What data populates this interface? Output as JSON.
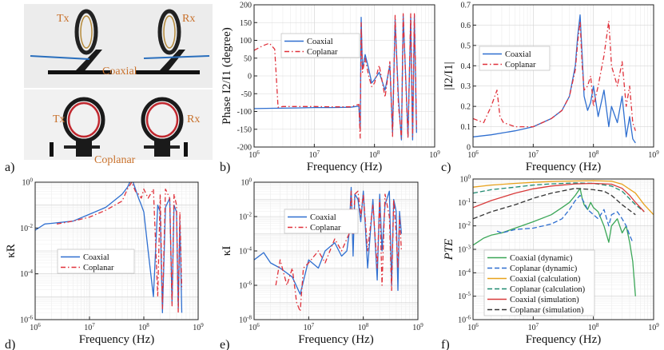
{
  "photo": {
    "panel_label": "a)",
    "labels": {
      "tx_top": "Tx",
      "rx_top": "Rx",
      "coaxial": "Coaxial",
      "tx_bottom": "Tx",
      "rx_bottom": "Rx",
      "coplanar": "Coplanar"
    }
  },
  "colors": {
    "coaxial": "#2f6fd0",
    "coplanar": "#e0303a",
    "green": "#3aa657",
    "orange": "#e8a21d",
    "teal": "#1f8a70",
    "red": "#d83a3a",
    "dark": "#333333"
  },
  "chart_data": [
    {
      "id": "b",
      "panel_label": "b)",
      "type": "line",
      "xlabel": "Frequency (Hz)",
      "ylabel": "Phase I2/I1 (degree)",
      "xscale": "log",
      "xlim": [
        1000000,
        1000000000
      ],
      "ylim": [
        -200,
        200
      ],
      "yticks": [
        "-200",
        "-150",
        "-100",
        "-50",
        "0",
        "50",
        "100",
        "150",
        "200"
      ],
      "legend": "top-left",
      "series": [
        {
          "name": "Coaxial",
          "color": "#2f6fd0",
          "dash": "",
          "x": [
            1000000.0,
            2000000.0,
            5000000.0,
            10000000.0,
            20000000.0,
            40000000.0,
            55000000.0,
            58000000.0,
            60000000.0,
            63000000.0,
            70000000.0,
            80000000.0,
            90000000.0,
            100000000.0,
            120000000.0,
            150000000.0,
            180000000.0,
            200000000.0,
            220000000.0,
            250000000.0,
            280000000.0,
            300000000.0,
            330000000.0,
            360000000.0,
            400000000.0,
            430000000.0,
            460000000.0,
            500000000.0
          ],
          "y": [
            -92,
            -91,
            -90,
            -89,
            -89,
            -88,
            -85,
            -150,
            165,
            20,
            60,
            20,
            -20,
            -10,
            10,
            -40,
            30,
            -160,
            160,
            -60,
            -180,
            170,
            0,
            -170,
            165,
            -180,
            170,
            -160
          ]
        },
        {
          "name": "Coplanar",
          "color": "#e0303a",
          "dash": "6,3,1.5,3",
          "x": [
            1000000.0,
            1400000.0,
            1800000.0,
            2200000.0,
            2500000.0,
            3000000.0,
            5000000.0,
            10000000.0,
            20000000.0,
            40000000.0,
            55000000.0,
            58000000.0,
            60000000.0,
            63000000.0,
            70000000.0,
            80000000.0,
            90000000.0,
            100000000.0,
            120000000.0,
            150000000.0,
            180000000.0,
            200000000.0,
            220000000.0,
            250000000.0,
            280000000.0,
            300000000.0,
            330000000.0,
            360000000.0,
            400000000.0,
            430000000.0,
            460000000.0,
            500000000.0
          ],
          "y": [
            72,
            85,
            92,
            75,
            -88,
            -86,
            -86,
            -86,
            -87,
            -87,
            -80,
            -175,
            150,
            10,
            50,
            0,
            -30,
            -20,
            30,
            -60,
            40,
            -170,
            170,
            -80,
            -175,
            175,
            -10,
            -175,
            175,
            -170,
            175,
            -150
          ]
        }
      ]
    },
    {
      "id": "c",
      "panel_label": "c)",
      "type": "line",
      "xlabel": "Frequency (Hz)",
      "ylabel": "|I2/I1|",
      "xscale": "log",
      "xlim": [
        1000000,
        1000000000
      ],
      "ylim": [
        0,
        0.7
      ],
      "yticks": [
        "0",
        "0.1",
        "0.2",
        "0.3",
        "0.4",
        "0.5",
        "0.6",
        "0.7"
      ],
      "legend": "top-left",
      "series": [
        {
          "name": "Coaxial",
          "color": "#2f6fd0",
          "dash": "",
          "x": [
            1000000.0,
            2000000.0,
            5000000.0,
            10000000.0,
            20000000.0,
            30000000.0,
            40000000.0,
            50000000.0,
            55000000.0,
            60000000.0,
            65000000.0,
            70000000.0,
            80000000.0,
            90000000.0,
            100000000.0,
            120000000.0,
            150000000.0,
            180000000.0,
            200000000.0,
            250000000.0,
            300000000.0,
            350000000.0,
            400000000.0,
            450000000.0,
            500000000.0
          ],
          "y": [
            0.05,
            0.06,
            0.08,
            0.1,
            0.14,
            0.18,
            0.25,
            0.4,
            0.55,
            0.65,
            0.45,
            0.25,
            0.18,
            0.22,
            0.3,
            0.15,
            0.28,
            0.1,
            0.2,
            0.12,
            0.25,
            0.05,
            0.15,
            0.04,
            0.02
          ]
        },
        {
          "name": "Coplanar",
          "color": "#e0303a",
          "dash": "6,3,1.5,3",
          "x": [
            1000000.0,
            1500000.0,
            2000000.0,
            2500000.0,
            2800000.0,
            3200000.0,
            5000000.0,
            10000000.0,
            20000000.0,
            30000000.0,
            40000000.0,
            50000000.0,
            55000000.0,
            60000000.0,
            65000000.0,
            70000000.0,
            80000000.0,
            90000000.0,
            100000000.0,
            120000000.0,
            150000000.0,
            180000000.0,
            200000000.0,
            250000000.0,
            300000000.0,
            350000000.0,
            400000000.0,
            450000000.0,
            500000000.0
          ],
          "y": [
            0.14,
            0.12,
            0.2,
            0.28,
            0.15,
            0.12,
            0.1,
            0.1,
            0.14,
            0.18,
            0.25,
            0.38,
            0.52,
            0.62,
            0.4,
            0.28,
            0.3,
            0.35,
            0.2,
            0.3,
            0.45,
            0.62,
            0.4,
            0.3,
            0.42,
            0.2,
            0.3,
            0.12,
            0.08
          ]
        }
      ]
    },
    {
      "id": "d",
      "panel_label": "d)",
      "type": "line",
      "xlabel": "Frequency (Hz)",
      "ylabel": "κR",
      "xscale": "log",
      "xlim": [
        1000000,
        1000000000
      ],
      "yscale": "log",
      "ylim": [
        1e-06,
        1
      ],
      "yticks": [
        "10-6",
        "10-4",
        "10-2",
        "100"
      ],
      "legend": "bottom-left",
      "series": [
        {
          "name": "Coaxial",
          "color": "#2f6fd0",
          "dash": "",
          "x": [
            1000000.0,
            1500000.0,
            2000000.0,
            5000000.0,
            10000000.0,
            20000000.0,
            40000000.0,
            50000000.0,
            60000000.0,
            70000000.0,
            80000000.0,
            90000000.0,
            100000000.0,
            120000000.0,
            150000000.0,
            180000000.0,
            200000000.0,
            220000000.0,
            250000000.0,
            300000000.0,
            330000000.0,
            360000000.0,
            400000000.0,
            430000000.0,
            460000000.0,
            500000000.0
          ],
          "y": [
            0.008,
            0.015,
            0.016,
            0.02,
            0.04,
            0.08,
            0.3,
            0.6,
            1.5,
            0.5,
            0.2,
            0.1,
            0.05,
            0.001,
            1e-05,
            0.1,
            0.05,
            2e-06,
            0.08,
            0.2,
            5e-06,
            0.1,
            0.05,
            3e-06,
            0.02,
            2e-06
          ]
        },
        {
          "name": "Coplanar",
          "color": "#e0303a",
          "dash": "6,3,1.5,3",
          "x": [
            2500000.0,
            5000000.0,
            10000000.0,
            20000000.0,
            40000000.0,
            50000000.0,
            60000000.0,
            70000000.0,
            80000000.0,
            90000000.0,
            100000000.0,
            120000000.0,
            150000000.0,
            180000000.0,
            200000000.0,
            220000000.0,
            250000000.0,
            300000000.0,
            330000000.0,
            360000000.0,
            400000000.0,
            430000000.0,
            460000000.0,
            500000000.0
          ],
          "y": [
            0.015,
            0.02,
            0.03,
            0.06,
            0.15,
            0.5,
            1.0,
            0.4,
            0.3,
            0.2,
            0.5,
            0.2,
            0.5,
            1e-05,
            0.3,
            3e-06,
            0.5,
            0.2,
            4e-06,
            0.3,
            0.1,
            2e-06,
            0.05,
            2e-05
          ]
        }
      ]
    },
    {
      "id": "e",
      "panel_label": "e)",
      "type": "line",
      "xlabel": "Frequency (Hz)",
      "ylabel": "κI",
      "xscale": "log",
      "xlim": [
        1000000,
        1000000000
      ],
      "yscale": "log",
      "ylim": [
        1e-08,
        1
      ],
      "yticks": [
        "10-8",
        "10-6",
        "10-4",
        "10-2",
        "100"
      ],
      "legend": "top-center",
      "series": [
        {
          "name": "Coaxial",
          "color": "#2f6fd0",
          "dash": "",
          "x": [
            1000000.0,
            1500000.0,
            2000000.0,
            3000000.0,
            5000000.0,
            7000000.0,
            10000000.0,
            15000000.0,
            20000000.0,
            30000000.0,
            40000000.0,
            50000000.0,
            55000000.0,
            60000000.0,
            65000000.0,
            70000000.0,
            80000000.0,
            90000000.0,
            100000000.0,
            120000000.0,
            150000000.0,
            180000000.0,
            200000000.0,
            220000000.0,
            250000000.0,
            300000000.0,
            330000000.0,
            360000000.0,
            400000000.0,
            430000000.0,
            460000000.0,
            500000000.0
          ],
          "y": [
            3e-05,
            8e-05,
            2e-05,
            1e-05,
            3e-06,
            3e-07,
            3e-05,
            1e-05,
            0.0001,
            0.0003,
            5e-05,
            0.0001,
            0.001,
            0.5,
            5e-05,
            0.2,
            0.1,
            0.005,
            0.3,
            1e-05,
            0.1,
            2e-06,
            0.2,
            0.0001,
            0.05,
            0.3,
            1e-06,
            0.1,
            0.02,
            5e-07,
            0.02,
            0.001
          ]
        },
        {
          "name": "Coplanar",
          "color": "#e0303a",
          "dash": "6,3,1.5,3",
          "x": [
            2500000.0,
            3000000.0,
            4000000.0,
            5000000.0,
            6000000.0,
            7000000.0,
            8000000.0,
            10000000.0,
            15000000.0,
            20000000.0,
            30000000.0,
            40000000.0,
            50000000.0,
            55000000.0,
            60000000.0,
            65000000.0,
            70000000.0,
            80000000.0,
            90000000.0,
            100000000.0,
            120000000.0,
            150000000.0,
            180000000.0,
            200000000.0,
            220000000.0,
            250000000.0,
            300000000.0,
            330000000.0,
            360000000.0,
            400000000.0,
            430000000.0,
            460000000.0,
            500000000.0
          ],
          "y": [
            1e-06,
            3e-05,
            1e-06,
            1e-05,
            1e-07,
            3e-08,
            1e-05,
            2e-05,
            0.0001,
            2e-05,
            0.0005,
            0.0001,
            0.0005,
            0.001,
            0.3,
            0.001,
            0.2,
            0.3,
            0.01,
            0.2,
            0.0001,
            0.05,
            1e-05,
            0.1,
            1e-06,
            0.2,
            0.01,
            5e-07,
            0.1,
            0.001,
            1e-05,
            0.01,
            0.0001
          ]
        }
      ]
    },
    {
      "id": "f",
      "panel_label": "f)",
      "type": "line",
      "xlabel": "Frequency (Hz)",
      "ylabel": "PTE",
      "xscale": "log",
      "xlim": [
        1000000,
        1000000000
      ],
      "yscale": "log",
      "ylim": [
        1e-06,
        1
      ],
      "yticks": [
        "10-6",
        "10-5",
        "10-4",
        "10-3",
        "10-2",
        "10-1",
        "100"
      ],
      "legend": "bottom-center",
      "series": [
        {
          "name": "Coaxial (dynamic)",
          "color": "#3aa657",
          "dash": "",
          "x": [
            1000000.0,
            1500000.0,
            2000000.0,
            3000000.0,
            5000000.0,
            10000000.0,
            20000000.0,
            30000000.0,
            40000000.0,
            50000000.0,
            60000000.0,
            65000000.0,
            70000000.0,
            80000000.0,
            90000000.0,
            100000000.0,
            120000000.0,
            150000000.0,
            180000000.0,
            200000000.0,
            250000000.0,
            300000000.0,
            350000000.0,
            400000000.0,
            450000000.0,
            500000000.0
          ],
          "y": [
            0.0015,
            0.003,
            0.004,
            0.005,
            0.008,
            0.015,
            0.03,
            0.06,
            0.1,
            0.2,
            0.4,
            0.15,
            0.08,
            0.05,
            0.1,
            0.06,
            0.04,
            0.01,
            0.002,
            0.01,
            0.02,
            0.005,
            0.01,
            0.002,
            0.0003,
            1e-05
          ]
        },
        {
          "name": "Coplanar (dynamic)",
          "color": "#2f6fd0",
          "dash": "6,3",
          "x": [
            2500000.0,
            3000000.0,
            5000000.0,
            10000000.0,
            20000000.0,
            30000000.0,
            40000000.0,
            50000000.0,
            60000000.0,
            70000000.0,
            80000000.0,
            100000000.0,
            120000000.0,
            150000000.0,
            180000000.0,
            200000000.0,
            250000000.0,
            300000000.0,
            350000000.0,
            400000000.0,
            450000000.0
          ],
          "y": [
            0.006,
            0.005,
            0.007,
            0.008,
            0.012,
            0.02,
            0.05,
            0.12,
            0.2,
            0.1,
            0.05,
            0.03,
            0.02,
            0.05,
            0.01,
            0.03,
            0.04,
            0.02,
            0.01,
            0.004,
            0.002
          ]
        },
        {
          "name": "Coaxial (calculation)",
          "color": "#e8a21d",
          "dash": "",
          "x": [
            1000000.0,
            2000000.0,
            5000000.0,
            10000000.0,
            20000000.0,
            50000000.0,
            100000000.0,
            200000000.0,
            300000000.0,
            500000000.0,
            700000000.0,
            1000000000.0
          ],
          "y": [
            0.45,
            0.55,
            0.65,
            0.72,
            0.78,
            0.82,
            0.85,
            0.8,
            0.6,
            0.25,
            0.08,
            0.03
          ]
        },
        {
          "name": "Coplanar (calculation)",
          "color": "#1f8a70",
          "dash": "6,3",
          "x": [
            1000000.0,
            2000000.0,
            5000000.0,
            10000000.0,
            20000000.0,
            50000000.0,
            100000000.0,
            200000000.0,
            300000000.0,
            500000000.0,
            700000000.0
          ],
          "y": [
            0.25,
            0.35,
            0.45,
            0.55,
            0.62,
            0.68,
            0.65,
            0.5,
            0.3,
            0.08,
            0.04
          ]
        },
        {
          "name": "Coaxial (simulation)",
          "color": "#d83a3a",
          "dash": "",
          "x": [
            1000000.0,
            2000000.0,
            5000000.0,
            10000000.0,
            20000000.0,
            50000000.0,
            100000000.0,
            200000000.0,
            300000000.0,
            400000000.0,
            500000000.0,
            700000000.0
          ],
          "y": [
            0.06,
            0.12,
            0.25,
            0.38,
            0.5,
            0.62,
            0.65,
            0.6,
            0.4,
            0.2,
            0.1,
            0.04
          ]
        },
        {
          "name": "Coplanar (simulation)",
          "color": "#333333",
          "dash": "6,3",
          "x": [
            1000000.0,
            2000000.0,
            5000000.0,
            10000000.0,
            20000000.0,
            50000000.0,
            100000000.0,
            150000000.0,
            200000000.0,
            300000000.0,
            500000000.0
          ],
          "y": [
            0.02,
            0.04,
            0.08,
            0.15,
            0.25,
            0.4,
            0.35,
            0.3,
            0.2,
            0.08,
            0.03
          ]
        }
      ]
    }
  ]
}
